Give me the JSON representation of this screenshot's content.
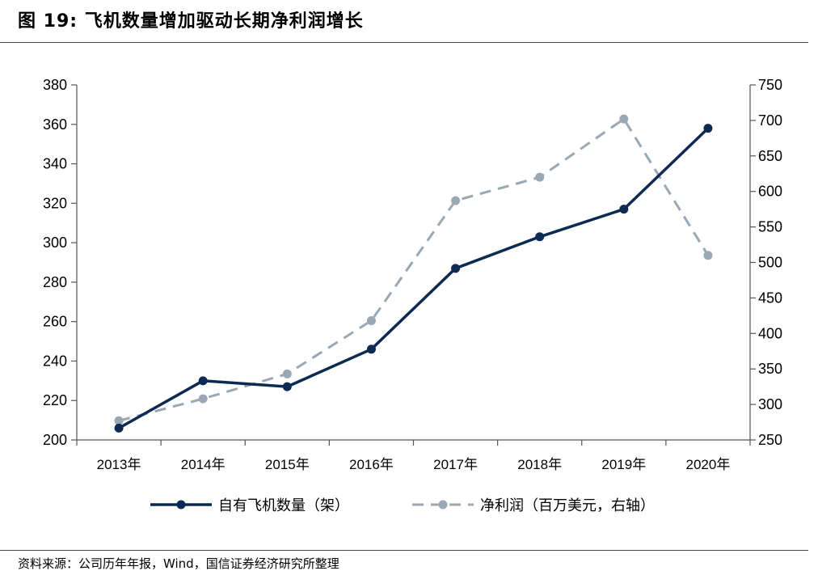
{
  "header": {
    "title": "图 19:  飞机数量增加驱动长期净利润增长"
  },
  "footer": {
    "source": "资料来源：公司历年年报，Wind，国信证券经济研究所整理"
  },
  "chart_data": {
    "type": "line",
    "categories": [
      "2013年",
      "2014年",
      "2015年",
      "2016年",
      "2017年",
      "2018年",
      "2019年",
      "2020年"
    ],
    "series": [
      {
        "name": "自有飞机数量（架）",
        "axis": "left",
        "style": "solid",
        "color": "#0d2b52",
        "values": [
          206,
          230,
          227,
          246,
          287,
          303,
          317,
          358
        ]
      },
      {
        "name": "净利润（百万美元，右轴）",
        "axis": "right",
        "style": "dashed",
        "color": "#9aa8b6",
        "values": [
          277,
          308,
          343,
          418,
          587,
          620,
          702,
          510
        ]
      }
    ],
    "y_left": {
      "min": 200,
      "max": 380,
      "step": 20,
      "ticks": [
        200,
        220,
        240,
        260,
        280,
        300,
        320,
        340,
        360,
        380
      ]
    },
    "y_right": {
      "min": 250,
      "max": 750,
      "step": 50,
      "ticks": [
        250,
        300,
        350,
        400,
        450,
        500,
        550,
        600,
        650,
        700,
        750
      ]
    },
    "grid": false,
    "legend_position": "bottom"
  }
}
